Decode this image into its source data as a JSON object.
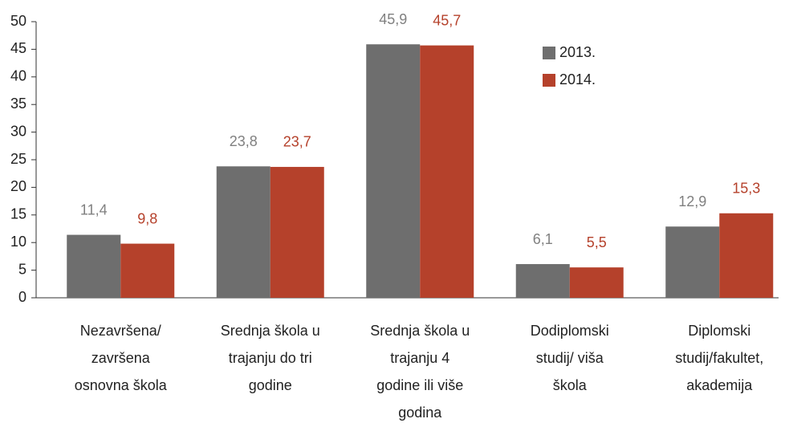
{
  "chart_data": {
    "type": "bar",
    "categories": [
      "Nezavršena/\nzavršena\nosnovna škola",
      "Srednja škola u\ntrajanju do tri\ngodine",
      "Srednja škola u\ntrajanju 4\ngodine ili više\ngodina",
      "Dodiplomski\nstudij/ viša\nškola",
      "Diplomski\nstudij/fakultet,\nakademija"
    ],
    "series": [
      {
        "name": "2013.",
        "color": "#6e6e6e",
        "label_color": "#808080",
        "values": [
          11.4,
          23.8,
          45.9,
          6.1,
          12.9
        ],
        "value_labels": [
          "11,4",
          "23,8",
          "45,9",
          "6,1",
          "12,9"
        ]
      },
      {
        "name": "2014.",
        "color": "#b5412b",
        "label_color": "#b5412b",
        "values": [
          9.8,
          23.7,
          45.7,
          5.5,
          15.3
        ],
        "value_labels": [
          "9,8",
          "23,7",
          "45,7",
          "5,5",
          "15,3"
        ]
      }
    ],
    "ylim": [
      0,
      50
    ],
    "yticks": [
      0,
      5,
      10,
      15,
      20,
      25,
      30,
      35,
      40,
      45,
      50
    ],
    "grid": false,
    "legend": "top-right"
  }
}
